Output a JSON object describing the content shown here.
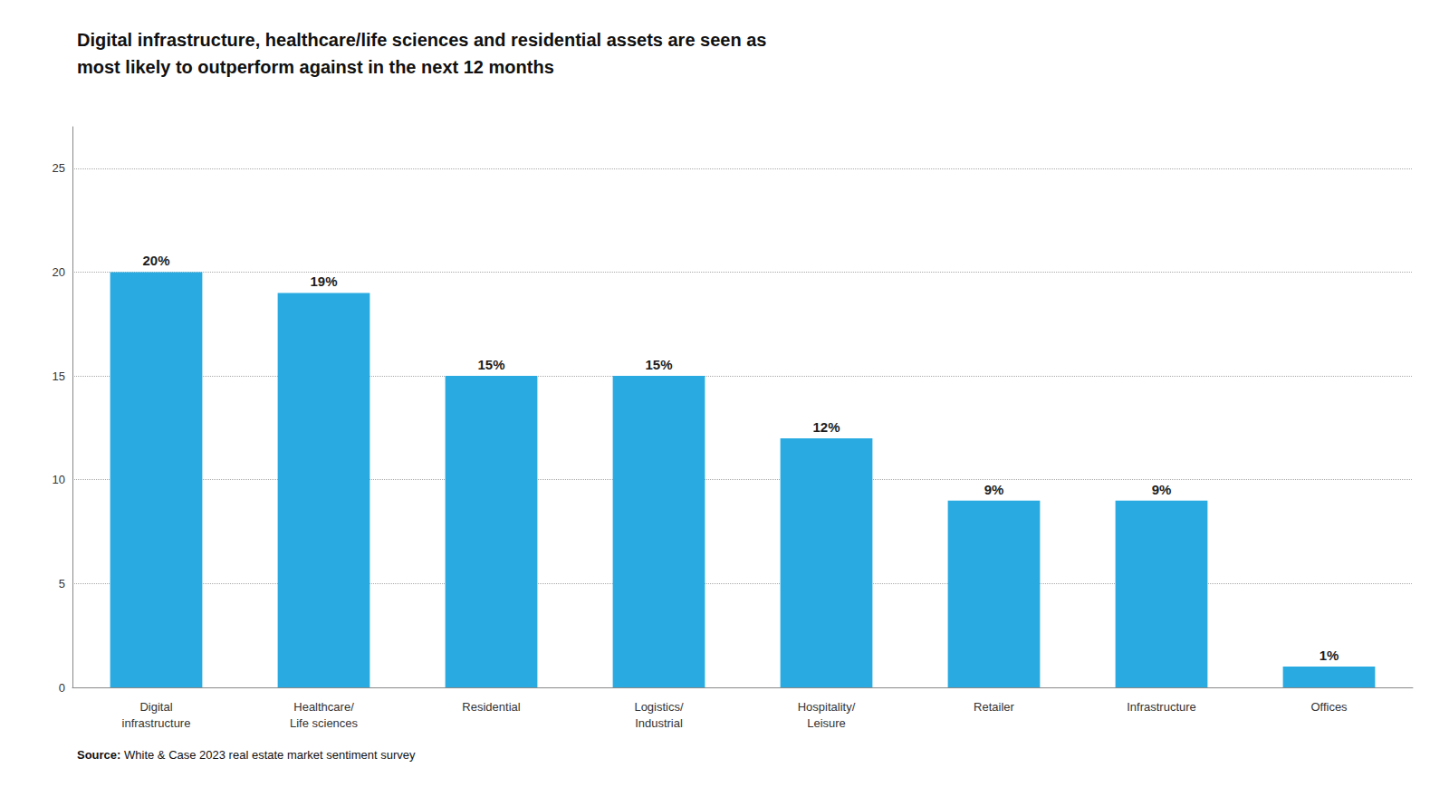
{
  "chart_data": {
    "type": "bar",
    "title": "Digital infrastructure, healthcare/life sciences and residential assets are seen as\nmost likely to outperform against in the next 12 months",
    "annotation": "Source: White & Case 2023 real estate market sentiment survey",
    "categories": [
      "Digital\ninfrastructure",
      "Healthcare/\nLife sciences",
      "Residential",
      "Logistics/\nIndustrial",
      "Hospitality/\nLeisure",
      "Retailer",
      "Infrastructure",
      "Offices"
    ],
    "values": [
      20,
      19,
      15,
      15,
      12,
      9,
      9,
      1
    ],
    "value_labels": [
      "20%",
      "19%",
      "15%",
      "15%",
      "12%",
      "9%",
      "9%",
      "1%"
    ],
    "data_labels": true,
    "color": "#29ABE2",
    "ylim": [
      0,
      27
    ],
    "yticks": [
      0,
      5,
      10,
      15,
      20,
      25
    ],
    "grid": true
  }
}
